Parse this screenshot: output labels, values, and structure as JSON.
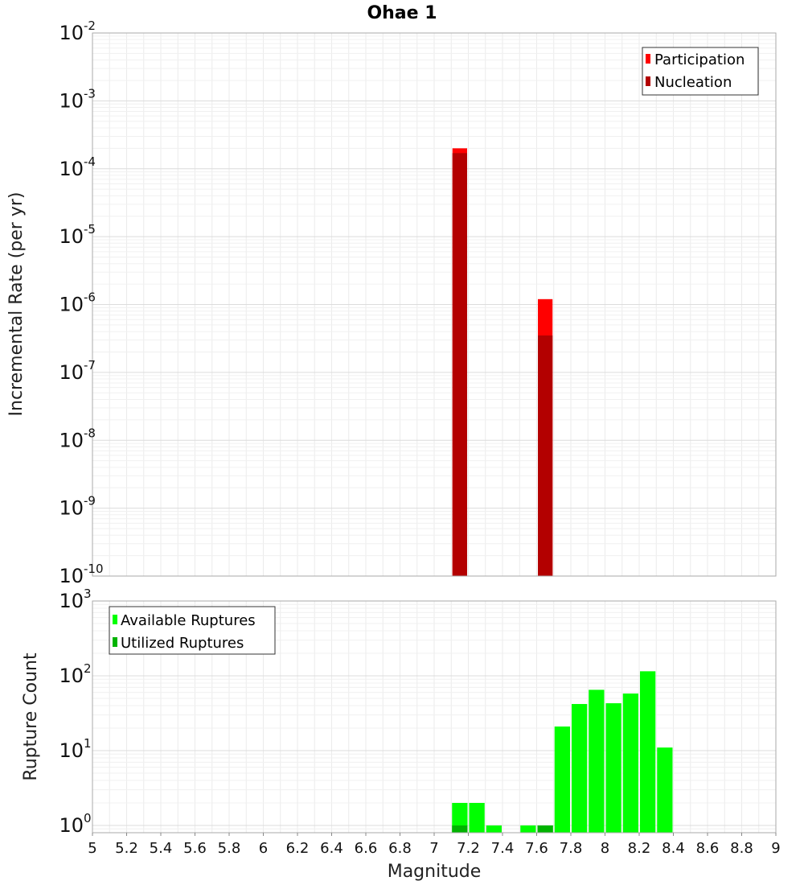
{
  "chart_data": [
    {
      "type": "bar",
      "title": "Ohae 1",
      "xlabel": "Magnitude",
      "ylabel": "Incremental Rate (per yr)",
      "yscale": "log",
      "xlim": [
        5,
        9
      ],
      "ylim": [
        1e-10,
        0.01
      ],
      "grid": true,
      "legend_position": "top-right",
      "series": [
        {
          "name": "Participation",
          "color": "#ff0000",
          "x": [
            7.15,
            7.65
          ],
          "values": [
            0.0002,
            1.2e-06
          ]
        },
        {
          "name": "Nucleation",
          "color": "#b30000",
          "x": [
            7.15,
            7.65
          ],
          "values": [
            0.00017,
            3.5e-07
          ]
        }
      ]
    },
    {
      "type": "bar",
      "xlabel": "Magnitude",
      "ylabel": "Rupture Count",
      "yscale": "log",
      "xlim": [
        5,
        9
      ],
      "ylim": [
        0.8,
        1000
      ],
      "grid": true,
      "legend_position": "top-left",
      "series": [
        {
          "name": "Available Ruptures",
          "color": "#00ff00",
          "x": [
            7.15,
            7.25,
            7.35,
            7.55,
            7.65,
            7.75,
            7.85,
            7.95,
            8.05,
            8.15,
            8.25,
            8.35
          ],
          "values": [
            2,
            2,
            1,
            1,
            1,
            21,
            42,
            65,
            43,
            58,
            115,
            11
          ]
        },
        {
          "name": "Utilized Ruptures",
          "color": "#00b300",
          "x": [
            7.15,
            7.65
          ],
          "values": [
            1,
            1
          ]
        }
      ]
    }
  ],
  "x_ticks": [
    "5",
    "5.2",
    "5.4",
    "5.6",
    "5.8",
    "6",
    "6.2",
    "6.4",
    "6.6",
    "6.8",
    "7",
    "7.2",
    "7.4",
    "7.6",
    "7.8",
    "8",
    "8.2",
    "8.4",
    "8.6",
    "8.8",
    "9"
  ],
  "top_y_exponents": [
    "-10",
    "-9",
    "-8",
    "-7",
    "-6",
    "-5",
    "-4",
    "-3",
    "-2"
  ],
  "bottom_y_exponents": [
    "0",
    "1",
    "2",
    "3"
  ],
  "tick_base": "10"
}
